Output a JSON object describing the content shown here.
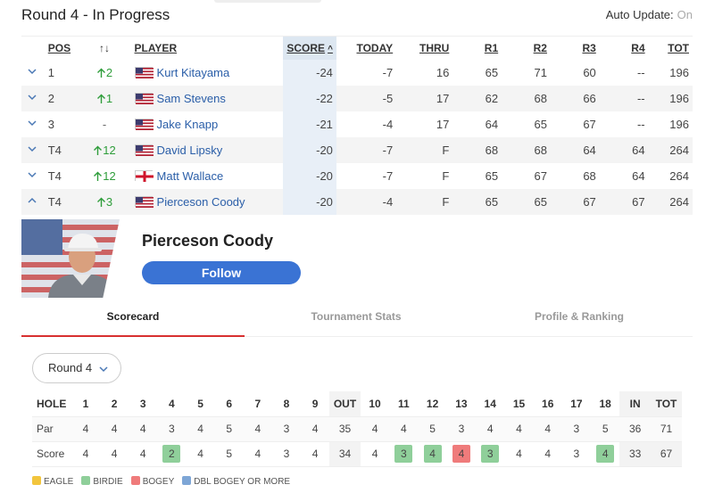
{
  "header": {
    "title": "Round 4 - In Progress",
    "auto_update_label": "Auto Update:",
    "auto_update_state": "On"
  },
  "leaderboard": {
    "columns": {
      "pos": "POS",
      "move": "↑↓",
      "player": "PLAYER",
      "score": "SCORE",
      "today": "TODAY",
      "thru": "THRU",
      "r1": "R1",
      "r2": "R2",
      "r3": "R3",
      "r4": "R4",
      "tot": "TOT"
    },
    "sort_icon": "^",
    "rows": [
      {
        "pos": "1",
        "move": "2",
        "move_dir": "up",
        "flag": "usa-flag",
        "player": "Kurt Kitayama",
        "score": "-24",
        "today": "-7",
        "thru": "16",
        "r1": "65",
        "r2": "71",
        "r3": "60",
        "r4": "--",
        "tot": "196",
        "expanded": false
      },
      {
        "pos": "2",
        "move": "1",
        "move_dir": "up",
        "flag": "usa-flag",
        "player": "Sam Stevens",
        "score": "-22",
        "today": "-5",
        "thru": "17",
        "r1": "62",
        "r2": "68",
        "r3": "66",
        "r4": "--",
        "tot": "196",
        "expanded": false
      },
      {
        "pos": "3",
        "move": "-",
        "move_dir": "none",
        "flag": "usa-flag",
        "player": "Jake Knapp",
        "score": "-21",
        "today": "-4",
        "thru": "17",
        "r1": "64",
        "r2": "65",
        "r3": "67",
        "r4": "--",
        "tot": "196",
        "expanded": false
      },
      {
        "pos": "T4",
        "move": "12",
        "move_dir": "up",
        "flag": "usa-flag",
        "player": "David Lipsky",
        "score": "-20",
        "today": "-7",
        "thru": "F",
        "r1": "68",
        "r2": "68",
        "r3": "64",
        "r4": "64",
        "tot": "264",
        "expanded": false
      },
      {
        "pos": "T4",
        "move": "12",
        "move_dir": "up",
        "flag": "england-flag",
        "player": "Matt Wallace",
        "score": "-20",
        "today": "-7",
        "thru": "F",
        "r1": "65",
        "r2": "67",
        "r3": "68",
        "r4": "64",
        "tot": "264",
        "expanded": false
      },
      {
        "pos": "T4",
        "move": "3",
        "move_dir": "up",
        "flag": "usa-flag",
        "player": "Pierceson Coody",
        "score": "-20",
        "today": "-4",
        "thru": "F",
        "r1": "65",
        "r2": "65",
        "r3": "67",
        "r4": "67",
        "tot": "264",
        "expanded": true
      }
    ]
  },
  "profile": {
    "name": "Pierceson Coody",
    "follow_label": "Follow",
    "photo_icon": "player-photo"
  },
  "tabs": [
    {
      "label": "Scorecard",
      "active": true
    },
    {
      "label": "Tournament Stats",
      "active": false
    },
    {
      "label": "Profile & Ranking",
      "active": false
    }
  ],
  "round_select": {
    "value": "Round 4"
  },
  "scorecard": {
    "hole_label": "HOLE",
    "par_label": "Par",
    "score_label": "Score",
    "holes": [
      "1",
      "2",
      "3",
      "4",
      "5",
      "6",
      "7",
      "8",
      "9",
      "OUT",
      "10",
      "11",
      "12",
      "13",
      "14",
      "15",
      "16",
      "17",
      "18",
      "IN",
      "TOT"
    ],
    "par": [
      "4",
      "4",
      "4",
      "3",
      "4",
      "5",
      "4",
      "3",
      "4",
      "35",
      "4",
      "4",
      "5",
      "3",
      "4",
      "4",
      "4",
      "3",
      "5",
      "36",
      "71"
    ],
    "score": [
      "4",
      "4",
      "4",
      "2",
      "4",
      "5",
      "4",
      "3",
      "4",
      "34",
      "4",
      "3",
      "4",
      "4",
      "3",
      "4",
      "4",
      "3",
      "4",
      "33",
      "67"
    ],
    "marks": [
      "",
      "",
      "",
      "birdie",
      "",
      "",
      "",
      "",
      "",
      "",
      "",
      "birdie",
      "birdie",
      "bogey",
      "birdie",
      "",
      "",
      "",
      "birdie",
      "",
      ""
    ]
  },
  "colors": {
    "eagle": "#f2c53d",
    "birdie": "#8fcf9a",
    "bogey": "#ef7b7b",
    "dbl_bogey": "#7ea6d6",
    "follow": "#3a73d4",
    "tab_active": "#d83030",
    "move_up": "#2e9d3a",
    "link": "#2a5ea8"
  },
  "legend": [
    {
      "key": "eagle",
      "label": "EAGLE"
    },
    {
      "key": "birdie",
      "label": "BIRDIE"
    },
    {
      "key": "bogey",
      "label": "BOGEY"
    },
    {
      "key": "dbl_bogey",
      "label": "DBL BOGEY OR MORE"
    }
  ]
}
